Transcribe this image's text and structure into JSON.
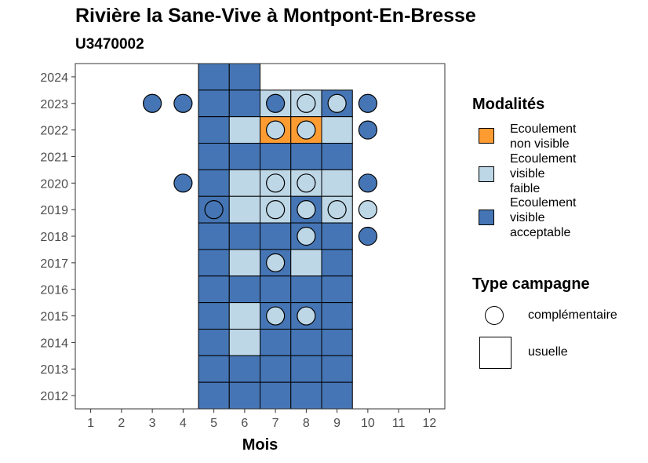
{
  "title": "Rivière la Sane-Vive à Montpont-En-Bresse",
  "subtitle": "U3470002",
  "chart_data": {
    "type": "heatmap",
    "xlabel": "Mois",
    "ylabel": "",
    "x_ticks": [
      "1",
      "2",
      "3",
      "4",
      "5",
      "6",
      "7",
      "8",
      "9",
      "10",
      "11",
      "12"
    ],
    "y_ticks": [
      "2012",
      "2013",
      "2014",
      "2015",
      "2016",
      "2017",
      "2018",
      "2019",
      "2020",
      "2021",
      "2022",
      "2023",
      "2024"
    ],
    "xlim": [
      0.5,
      12.5
    ],
    "ylim": [
      2011.5,
      2024.5
    ],
    "grid": false,
    "legend_position": "right",
    "modalites": [
      {
        "label": "Ecoulement non visible",
        "color": "#FE9C32"
      },
      {
        "label": "Ecoulement visible faible",
        "color": "#BDD7E7"
      },
      {
        "label": "Ecoulement visible acceptable",
        "color": "#4575B4"
      }
    ],
    "legend_modalites_title": "Modalités",
    "legend_modalites_lines": [
      [
        "Ecoulement",
        "non visible"
      ],
      [
        "Ecoulement",
        "visible",
        "faible"
      ],
      [
        "Ecoulement",
        "visible",
        "acceptable"
      ]
    ],
    "type_campagne": [
      {
        "label": "complémentaire",
        "shape": "circle"
      },
      {
        "label": "usuelle",
        "shape": "square"
      }
    ],
    "legend_type_title": "Type campagne",
    "points": [
      {
        "year": 2024,
        "month": 5,
        "modalite": "Ecoulement visible acceptable",
        "campagne": "usuelle"
      },
      {
        "year": 2024,
        "month": 6,
        "modalite": "Ecoulement visible acceptable",
        "campagne": "usuelle"
      },
      {
        "year": 2023,
        "month": 3,
        "modalite": "Ecoulement visible acceptable",
        "campagne": "complémentaire"
      },
      {
        "year": 2023,
        "month": 4,
        "modalite": "Ecoulement visible acceptable",
        "campagne": "complémentaire"
      },
      {
        "year": 2023,
        "month": 5,
        "modalite": "Ecoulement visible acceptable",
        "campagne": "usuelle"
      },
      {
        "year": 2023,
        "month": 6,
        "modalite": "Ecoulement visible acceptable",
        "campagne": "usuelle"
      },
      {
        "year": 2023,
        "month": 7,
        "modalite": "Ecoulement visible faible",
        "campagne": "usuelle"
      },
      {
        "year": 2023,
        "month": 7,
        "modalite": "Ecoulement visible acceptable",
        "campagne": "complémentaire"
      },
      {
        "year": 2023,
        "month": 8,
        "modalite": "Ecoulement visible faible",
        "campagne": "usuelle"
      },
      {
        "year": 2023,
        "month": 8,
        "modalite": "Ecoulement visible faible",
        "campagne": "complémentaire"
      },
      {
        "year": 2023,
        "month": 9,
        "modalite": "Ecoulement visible acceptable",
        "campagne": "usuelle"
      },
      {
        "year": 2023,
        "month": 9,
        "modalite": "Ecoulement visible faible",
        "campagne": "complémentaire"
      },
      {
        "year": 2023,
        "month": 10,
        "modalite": "Ecoulement visible acceptable",
        "campagne": "complémentaire"
      },
      {
        "year": 2022,
        "month": 5,
        "modalite": "Ecoulement visible acceptable",
        "campagne": "usuelle"
      },
      {
        "year": 2022,
        "month": 6,
        "modalite": "Ecoulement visible faible",
        "campagne": "usuelle"
      },
      {
        "year": 2022,
        "month": 7,
        "modalite": "Ecoulement non visible",
        "campagne": "usuelle"
      },
      {
        "year": 2022,
        "month": 7,
        "modalite": "Ecoulement visible faible",
        "campagne": "complémentaire"
      },
      {
        "year": 2022,
        "month": 8,
        "modalite": "Ecoulement non visible",
        "campagne": "usuelle"
      },
      {
        "year": 2022,
        "month": 8,
        "modalite": "Ecoulement visible faible",
        "campagne": "complémentaire"
      },
      {
        "year": 2022,
        "month": 9,
        "modalite": "Ecoulement visible faible",
        "campagne": "usuelle"
      },
      {
        "year": 2022,
        "month": 10,
        "modalite": "Ecoulement visible acceptable",
        "campagne": "complémentaire"
      },
      {
        "year": 2021,
        "month": 5,
        "modalite": "Ecoulement visible acceptable",
        "campagne": "usuelle"
      },
      {
        "year": 2021,
        "month": 6,
        "modalite": "Ecoulement visible acceptable",
        "campagne": "usuelle"
      },
      {
        "year": 2021,
        "month": 7,
        "modalite": "Ecoulement visible acceptable",
        "campagne": "usuelle"
      },
      {
        "year": 2021,
        "month": 8,
        "modalite": "Ecoulement visible acceptable",
        "campagne": "usuelle"
      },
      {
        "year": 2021,
        "month": 9,
        "modalite": "Ecoulement visible acceptable",
        "campagne": "usuelle"
      },
      {
        "year": 2020,
        "month": 4,
        "modalite": "Ecoulement visible acceptable",
        "campagne": "complémentaire"
      },
      {
        "year": 2020,
        "month": 5,
        "modalite": "Ecoulement visible acceptable",
        "campagne": "usuelle"
      },
      {
        "year": 2020,
        "month": 6,
        "modalite": "Ecoulement visible faible",
        "campagne": "usuelle"
      },
      {
        "year": 2020,
        "month": 7,
        "modalite": "Ecoulement visible faible",
        "campagne": "usuelle"
      },
      {
        "year": 2020,
        "month": 7,
        "modalite": "Ecoulement visible faible",
        "campagne": "complémentaire"
      },
      {
        "year": 2020,
        "month": 8,
        "modalite": "Ecoulement visible faible",
        "campagne": "usuelle"
      },
      {
        "year": 2020,
        "month": 8,
        "modalite": "Ecoulement visible faible",
        "campagne": "complémentaire"
      },
      {
        "year": 2020,
        "month": 9,
        "modalite": "Ecoulement visible faible",
        "campagne": "usuelle"
      },
      {
        "year": 2020,
        "month": 10,
        "modalite": "Ecoulement visible acceptable",
        "campagne": "complémentaire"
      },
      {
        "year": 2019,
        "month": 5,
        "modalite": "Ecoulement visible acceptable",
        "campagne": "usuelle"
      },
      {
        "year": 2019,
        "month": 5,
        "modalite": "Ecoulement visible acceptable",
        "campagne": "complémentaire"
      },
      {
        "year": 2019,
        "month": 6,
        "modalite": "Ecoulement visible faible",
        "campagne": "usuelle"
      },
      {
        "year": 2019,
        "month": 7,
        "modalite": "Ecoulement visible faible",
        "campagne": "usuelle"
      },
      {
        "year": 2019,
        "month": 7,
        "modalite": "Ecoulement visible faible",
        "campagne": "complémentaire"
      },
      {
        "year": 2019,
        "month": 8,
        "modalite": "Ecoulement visible acceptable",
        "campagne": "usuelle"
      },
      {
        "year": 2019,
        "month": 8,
        "modalite": "Ecoulement visible faible",
        "campagne": "complémentaire"
      },
      {
        "year": 2019,
        "month": 9,
        "modalite": "Ecoulement visible faible",
        "campagne": "usuelle"
      },
      {
        "year": 2019,
        "month": 9,
        "modalite": "Ecoulement visible faible",
        "campagne": "complémentaire"
      },
      {
        "year": 2019,
        "month": 10,
        "modalite": "Ecoulement visible faible",
        "campagne": "complémentaire"
      },
      {
        "year": 2018,
        "month": 5,
        "modalite": "Ecoulement visible acceptable",
        "campagne": "usuelle"
      },
      {
        "year": 2018,
        "month": 6,
        "modalite": "Ecoulement visible acceptable",
        "campagne": "usuelle"
      },
      {
        "year": 2018,
        "month": 7,
        "modalite": "Ecoulement visible acceptable",
        "campagne": "usuelle"
      },
      {
        "year": 2018,
        "month": 8,
        "modalite": "Ecoulement visible acceptable",
        "campagne": "usuelle"
      },
      {
        "year": 2018,
        "month": 8,
        "modalite": "Ecoulement visible faible",
        "campagne": "complémentaire"
      },
      {
        "year": 2018,
        "month": 9,
        "modalite": "Ecoulement visible acceptable",
        "campagne": "usuelle"
      },
      {
        "year": 2018,
        "month": 10,
        "modalite": "Ecoulement visible acceptable",
        "campagne": "complémentaire"
      },
      {
        "year": 2017,
        "month": 5,
        "modalite": "Ecoulement visible acceptable",
        "campagne": "usuelle"
      },
      {
        "year": 2017,
        "month": 6,
        "modalite": "Ecoulement visible faible",
        "campagne": "usuelle"
      },
      {
        "year": 2017,
        "month": 7,
        "modalite": "Ecoulement visible acceptable",
        "campagne": "usuelle"
      },
      {
        "year": 2017,
        "month": 7,
        "modalite": "Ecoulement visible faible",
        "campagne": "complémentaire"
      },
      {
        "year": 2017,
        "month": 8,
        "modalite": "Ecoulement visible faible",
        "campagne": "usuelle"
      },
      {
        "year": 2017,
        "month": 9,
        "modalite": "Ecoulement visible acceptable",
        "campagne": "usuelle"
      },
      {
        "year": 2016,
        "month": 5,
        "modalite": "Ecoulement visible acceptable",
        "campagne": "usuelle"
      },
      {
        "year": 2016,
        "month": 6,
        "modalite": "Ecoulement visible acceptable",
        "campagne": "usuelle"
      },
      {
        "year": 2016,
        "month": 7,
        "modalite": "Ecoulement visible acceptable",
        "campagne": "usuelle"
      },
      {
        "year": 2016,
        "month": 8,
        "modalite": "Ecoulement visible acceptable",
        "campagne": "usuelle"
      },
      {
        "year": 2016,
        "month": 9,
        "modalite": "Ecoulement visible acceptable",
        "campagne": "usuelle"
      },
      {
        "year": 2015,
        "month": 5,
        "modalite": "Ecoulement visible acceptable",
        "campagne": "usuelle"
      },
      {
        "year": 2015,
        "month": 6,
        "modalite": "Ecoulement visible faible",
        "campagne": "usuelle"
      },
      {
        "year": 2015,
        "month": 7,
        "modalite": "Ecoulement visible acceptable",
        "campagne": "usuelle"
      },
      {
        "year": 2015,
        "month": 7,
        "modalite": "Ecoulement visible faible",
        "campagne": "complémentaire"
      },
      {
        "year": 2015,
        "month": 8,
        "modalite": "Ecoulement visible acceptable",
        "campagne": "usuelle"
      },
      {
        "year": 2015,
        "month": 8,
        "modalite": "Ecoulement visible faible",
        "campagne": "complémentaire"
      },
      {
        "year": 2015,
        "month": 9,
        "modalite": "Ecoulement visible acceptable",
        "campagne": "usuelle"
      },
      {
        "year": 2014,
        "month": 5,
        "modalite": "Ecoulement visible acceptable",
        "campagne": "usuelle"
      },
      {
        "year": 2014,
        "month": 6,
        "modalite": "Ecoulement visible faible",
        "campagne": "usuelle"
      },
      {
        "year": 2014,
        "month": 7,
        "modalite": "Ecoulement visible acceptable",
        "campagne": "usuelle"
      },
      {
        "year": 2014,
        "month": 8,
        "modalite": "Ecoulement visible acceptable",
        "campagne": "usuelle"
      },
      {
        "year": 2014,
        "month": 9,
        "modalite": "Ecoulement visible acceptable",
        "campagne": "usuelle"
      },
      {
        "year": 2013,
        "month": 5,
        "modalite": "Ecoulement visible acceptable",
        "campagne": "usuelle"
      },
      {
        "year": 2013,
        "month": 6,
        "modalite": "Ecoulement visible acceptable",
        "campagne": "usuelle"
      },
      {
        "year": 2013,
        "month": 7,
        "modalite": "Ecoulement visible acceptable",
        "campagne": "usuelle"
      },
      {
        "year": 2013,
        "month": 8,
        "modalite": "Ecoulement visible acceptable",
        "campagne": "usuelle"
      },
      {
        "year": 2013,
        "month": 9,
        "modalite": "Ecoulement visible acceptable",
        "campagne": "usuelle"
      },
      {
        "year": 2012,
        "month": 5,
        "modalite": "Ecoulement visible acceptable",
        "campagne": "usuelle"
      },
      {
        "year": 2012,
        "month": 6,
        "modalite": "Ecoulement visible acceptable",
        "campagne": "usuelle"
      },
      {
        "year": 2012,
        "month": 7,
        "modalite": "Ecoulement visible acceptable",
        "campagne": "usuelle"
      },
      {
        "year": 2012,
        "month": 8,
        "modalite": "Ecoulement visible acceptable",
        "campagne": "usuelle"
      },
      {
        "year": 2012,
        "month": 9,
        "modalite": "Ecoulement visible acceptable",
        "campagne": "usuelle"
      }
    ]
  }
}
